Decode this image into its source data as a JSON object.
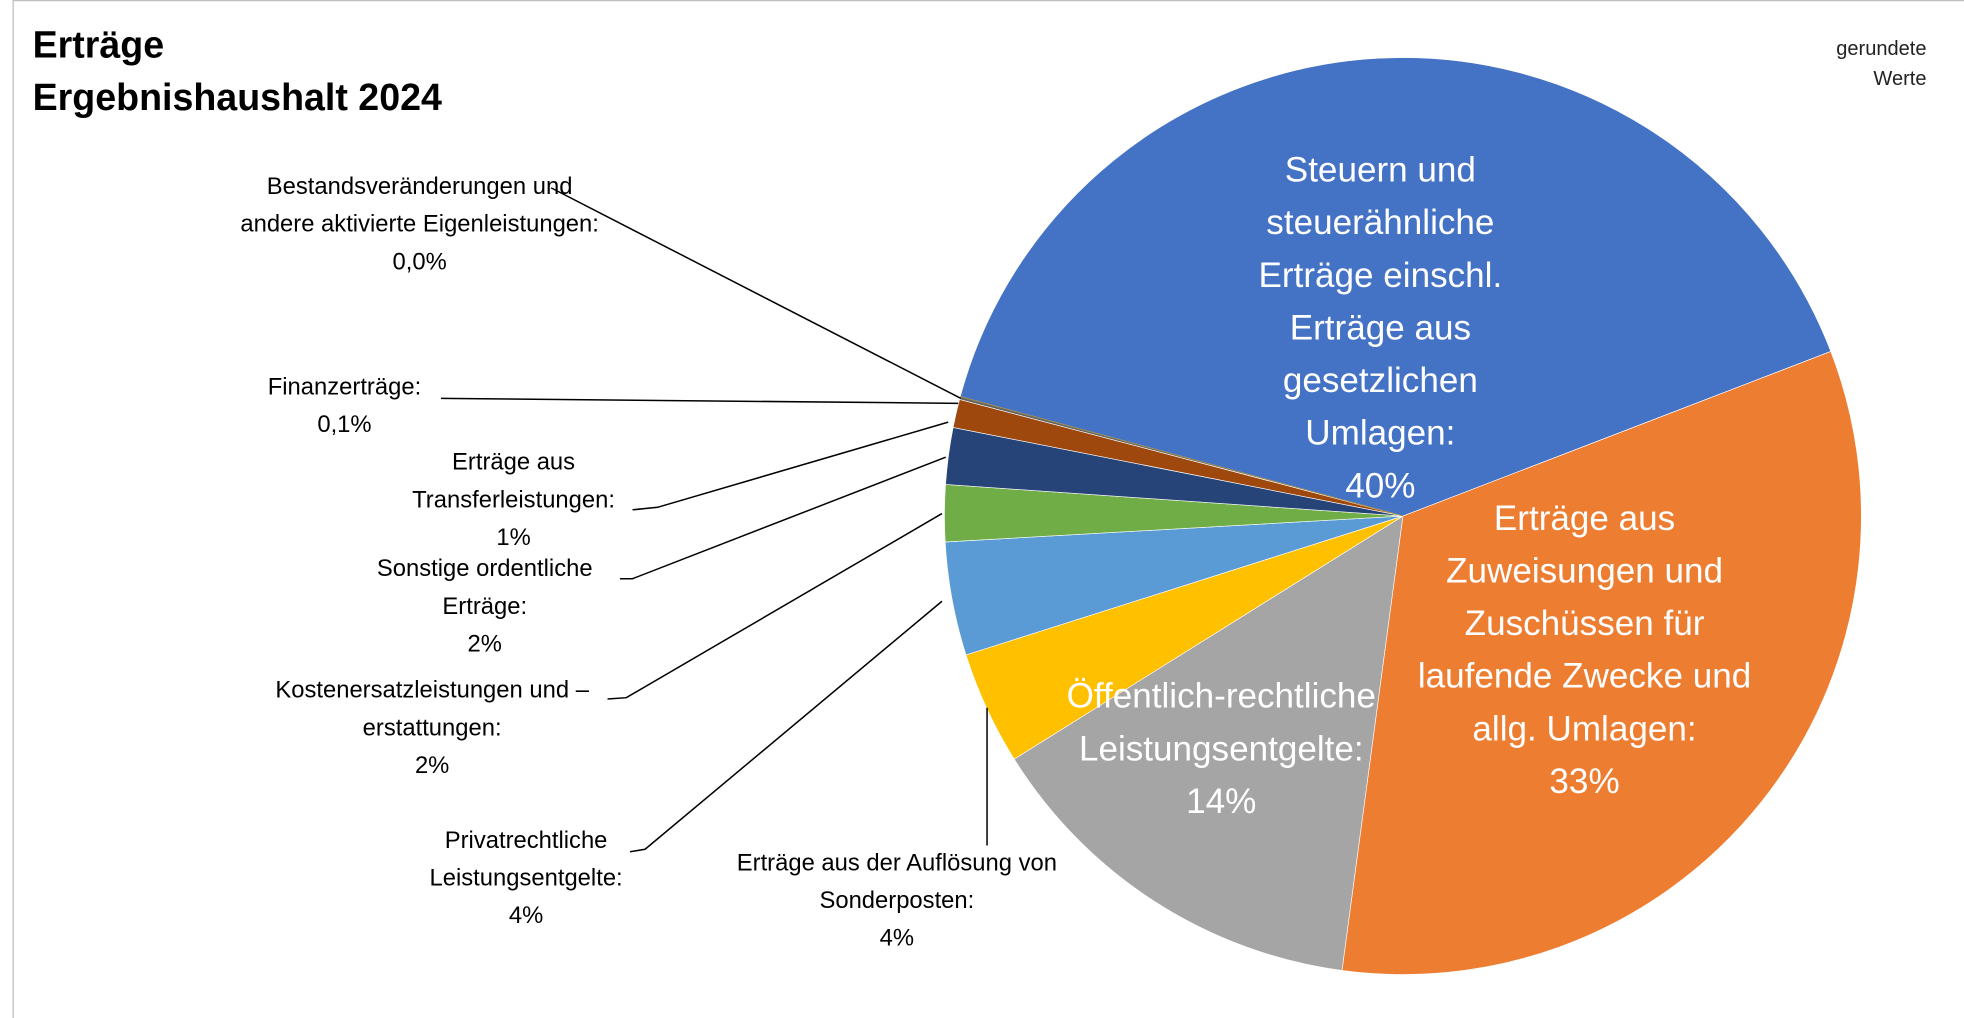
{
  "chart_data": {
    "type": "pie",
    "title": "Erträge",
    "subtitle": "Ergebnishaushalt 2024",
    "note": "gerundete Werte",
    "categories": [
      "Steuern und steuerähnliche Erträge einschl. Erträge aus gesetzlichen Umlagen:",
      "Erträge aus Zuweisungen und Zuschüssen für laufende Zwecke und allg. Umlagen:",
      "Öffentlich-rechtliche Leistungsentgelte:",
      "Erträge aus der Auflösung von Sonderposten:",
      "Privatrechtliche Leistungsentgelte:",
      "Kostenersatzleistungen und –erstattungen:",
      "Sonstige ordentliche Erträge:",
      "Erträge aus Transferleistungen:",
      "Finanzerträge:",
      "Bestandsveränderungen und andere aktivierte Eigenleistungen:"
    ],
    "values": [
      40,
      33,
      14,
      4,
      4,
      2,
      2,
      1,
      0.1,
      0.0
    ],
    "value_labels": [
      "40%",
      "33%",
      "14%",
      "4%",
      "4%",
      "2%",
      "2%",
      "1%",
      "0,1%",
      "0,0%"
    ],
    "colors": [
      "#4472c4",
      "#ed7d31",
      "#a5a5a5",
      "#ffc000",
      "#5b9bd5",
      "#70ad47",
      "#264478",
      "#9e480e",
      "#636363",
      "#997300"
    ]
  }
}
